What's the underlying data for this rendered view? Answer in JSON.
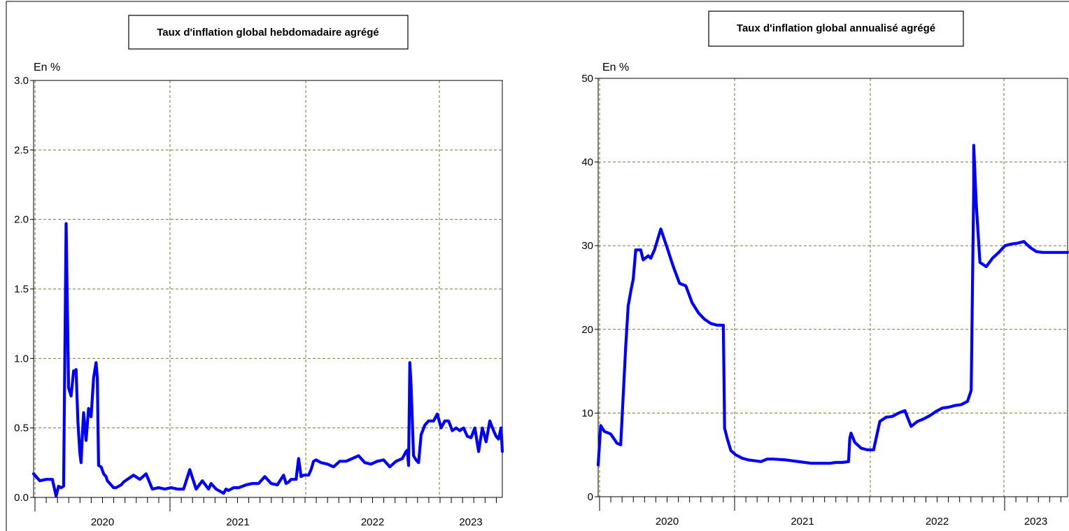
{
  "chart_data": [
    {
      "type": "line",
      "title": "Taux d'inflation global hebdomadaire agrégé",
      "ylabel": "En %",
      "ylim": [
        0,
        3
      ],
      "y_ticks": [
        "0.0",
        "0.5",
        "1.0",
        "1.5",
        "2.0",
        "2.5",
        "3.0"
      ],
      "x_ticks": [
        "2020",
        "2021",
        "2022",
        "2023"
      ],
      "x_range": [
        2019.5,
        2023.25
      ],
      "grid": true,
      "series_color": "#0000ff",
      "series": [
        {
          "x": [
            2019.5,
            2019.55,
            2019.6,
            2019.65,
            2019.68,
            2019.7,
            2019.72,
            2019.74,
            2019.76,
            2019.78,
            2019.8,
            2019.82,
            2019.83,
            2019.84,
            2019.855,
            2019.87,
            2019.88,
            2019.89,
            2019.9,
            2019.92,
            2019.94,
            2019.96,
            2019.98,
            2020.0,
            2020.01,
            2020.02,
            2020.04,
            2020.06,
            2020.08,
            2020.09,
            2020.1,
            2020.12,
            2020.14,
            2020.16,
            2020.18,
            2020.2,
            2020.22,
            2020.25,
            2020.3,
            2020.35,
            2020.4,
            2020.45,
            2020.5,
            2020.55,
            2020.6,
            2020.65,
            2020.7,
            2020.75,
            2020.8,
            2020.85,
            2020.9,
            2020.92,
            2020.94,
            2020.96,
            2020.98,
            2021.0,
            2021.02,
            2021.04,
            2021.06,
            2021.08,
            2021.1,
            2021.12,
            2021.14,
            2021.2,
            2021.25,
            2021.3,
            2021.35,
            2021.4,
            2021.45,
            2021.5,
            2021.52,
            2021.54,
            2021.56,
            2021.6,
            2021.62,
            2021.64,
            2021.66,
            2021.7,
            2021.72,
            2021.74,
            2021.76,
            2021.8,
            2021.85,
            2021.9,
            2021.95,
            2022.0,
            2022.05,
            2022.1,
            2022.15,
            2022.2,
            2022.25,
            2022.3,
            2022.35,
            2022.4,
            2022.45,
            2022.48,
            2022.49,
            2022.5,
            2022.51,
            2022.52,
            2022.54,
            2022.56,
            2022.58,
            2022.6,
            2022.63,
            2022.66,
            2022.7,
            2022.73,
            2022.76,
            2022.79,
            2022.82,
            2022.85,
            2022.88,
            2022.91,
            2022.94,
            2022.97,
            2023.0,
            2023.03,
            2023.06,
            2023.09,
            2023.12,
            2023.15,
            2023.18,
            2023.2,
            2023.22,
            2023.24,
            2023.25
          ],
          "y": [
            0.17,
            0.12,
            0.13,
            0.13,
            0.01,
            0.08,
            0.07,
            0.08,
            1.97,
            0.79,
            0.73,
            0.91,
            0.91,
            0.92,
            0.54,
            0.32,
            0.25,
            0.45,
            0.61,
            0.41,
            0.64,
            0.58,
            0.86,
            0.97,
            0.86,
            0.23,
            0.22,
            0.17,
            0.15,
            0.12,
            0.11,
            0.09,
            0.07,
            0.07,
            0.08,
            0.09,
            0.11,
            0.13,
            0.16,
            0.13,
            0.17,
            0.06,
            0.07,
            0.06,
            0.07,
            0.06,
            0.06,
            0.2,
            0.06,
            0.12,
            0.06,
            0.1,
            0.08,
            0.06,
            0.05,
            0.04,
            0.03,
            0.06,
            0.05,
            0.06,
            0.07,
            0.07,
            0.07,
            0.09,
            0.1,
            0.1,
            0.15,
            0.1,
            0.09,
            0.16,
            0.1,
            0.11,
            0.13,
            0.13,
            0.28,
            0.15,
            0.16,
            0.16,
            0.2,
            0.26,
            0.27,
            0.25,
            0.24,
            0.22,
            0.26,
            0.26,
            0.28,
            0.3,
            0.25,
            0.24,
            0.26,
            0.27,
            0.22,
            0.26,
            0.28,
            0.33,
            0.34,
            0.23,
            0.97,
            0.8,
            0.3,
            0.27,
            0.25,
            0.45,
            0.52,
            0.55,
            0.55,
            0.6,
            0.5,
            0.55,
            0.55,
            0.48,
            0.5,
            0.48,
            0.5,
            0.44,
            0.43,
            0.5,
            0.33,
            0.5,
            0.4,
            0.55,
            0.48,
            0.44,
            0.42,
            0.5,
            0.33
          ],
          "name": ""
        }
      ]
    },
    {
      "type": "line",
      "title": "Taux d'inflation global annualisé agrégé",
      "ylabel": "En %",
      "ylim": [
        0,
        50
      ],
      "y_ticks": [
        "0",
        "10",
        "20",
        "30",
        "40",
        "50"
      ],
      "x_ticks": [
        "2020",
        "2021",
        "2022",
        "2023"
      ],
      "x_range": [
        2019.5,
        2023.25
      ],
      "grid": true,
      "series_color": "#0000ff",
      "series": [
        {
          "x": [
            2019.5,
            2019.52,
            2019.55,
            2019.6,
            2019.65,
            2019.68,
            2019.72,
            2019.74,
            2019.76,
            2019.78,
            2019.8,
            2019.84,
            2019.86,
            2019.9,
            2019.92,
            2019.95,
            2020.0,
            2020.05,
            2020.1,
            2020.15,
            2020.2,
            2020.25,
            2020.3,
            2020.35,
            2020.4,
            2020.45,
            2020.5,
            2020.51,
            2020.53,
            2020.56,
            2020.6,
            2020.65,
            2020.7,
            2020.75,
            2020.8,
            2020.85,
            2020.9,
            2021.0,
            2021.1,
            2021.2,
            2021.3,
            2021.35,
            2021.4,
            2021.45,
            2021.5,
            2021.51,
            2021.52,
            2021.55,
            2021.6,
            2021.65,
            2021.7,
            2021.75,
            2021.8,
            2021.85,
            2021.9,
            2021.95,
            2022.0,
            2022.05,
            2022.1,
            2022.15,
            2022.2,
            2022.25,
            2022.3,
            2022.35,
            2022.4,
            2022.45,
            2022.48,
            2022.5,
            2022.5,
            2022.52,
            2022.55,
            2022.6,
            2022.65,
            2022.7,
            2022.75,
            2022.8,
            2022.85,
            2022.9,
            2022.95,
            2023.0,
            2023.05,
            2023.1,
            2023.15,
            2023.2,
            2023.25
          ],
          "y": [
            3.8,
            8.5,
            7.8,
            7.5,
            6.4,
            6.2,
            18,
            22.8,
            24.5,
            26,
            29.5,
            29.5,
            28.3,
            28.8,
            28.5,
            29.5,
            32,
            29.8,
            27.5,
            25.5,
            25.2,
            23.2,
            22,
            21.2,
            20.7,
            20.5,
            20.5,
            8.2,
            7,
            5.5,
            5,
            4.6,
            4.4,
            4.3,
            4.2,
            4.5,
            4.5,
            4.4,
            4.2,
            4,
            4,
            4,
            4.1,
            4.1,
            4.2,
            7,
            7.6,
            6.5,
            5.8,
            5.6,
            5.6,
            9,
            9.5,
            9.6,
            10,
            10.3,
            8.4,
            9,
            9.3,
            9.7,
            10.2,
            10.6,
            10.7,
            10.9,
            11,
            11.4,
            12.7,
            37,
            42,
            35,
            28,
            27.5,
            28.5,
            29.2,
            30,
            30.2,
            30.3,
            30.5,
            29.8,
            29.3,
            29.2,
            29.2,
            29.2,
            29.2,
            29.2
          ],
          "name": ""
        }
      ]
    }
  ]
}
